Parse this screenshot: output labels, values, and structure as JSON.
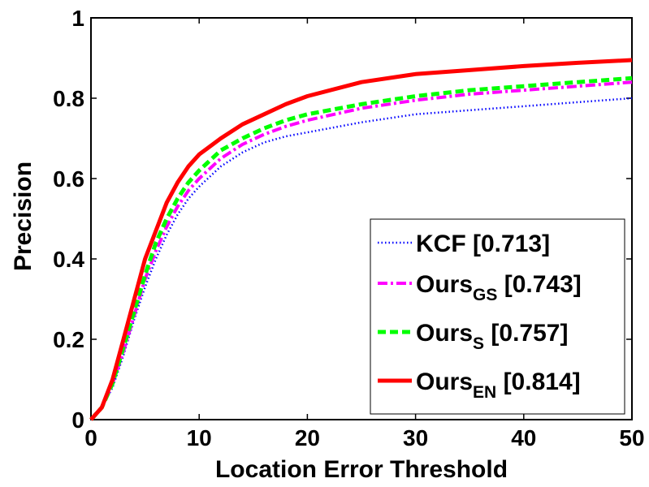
{
  "chart_data": {
    "type": "line",
    "title": "",
    "xlabel": "Location Error Threshold",
    "ylabel": "Precision",
    "xlim": [
      0,
      50
    ],
    "ylim": [
      0,
      1
    ],
    "xticks": [
      "0",
      "10",
      "20",
      "30",
      "40",
      "50"
    ],
    "yticks": [
      "0",
      "0.2",
      "0.4",
      "0.6",
      "0.8",
      "1"
    ],
    "grid": false,
    "legend_position": "bottom-right",
    "x": [
      0,
      1,
      2,
      3,
      4,
      5,
      6,
      7,
      8,
      9,
      10,
      12,
      14,
      16,
      18,
      20,
      25,
      30,
      35,
      40,
      45,
      50
    ],
    "series": [
      {
        "name": "KCF",
        "name_subscript": "",
        "score": "[0.713]",
        "color": "#0000ff",
        "dash": "dotted",
        "values": [
          0.0,
          0.03,
          0.08,
          0.16,
          0.25,
          0.33,
          0.4,
          0.46,
          0.51,
          0.55,
          0.58,
          0.63,
          0.665,
          0.69,
          0.705,
          0.715,
          0.74,
          0.76,
          0.77,
          0.78,
          0.79,
          0.8
        ]
      },
      {
        "name": "Ours",
        "name_subscript": "GS",
        "score": "[0.743]",
        "color": "#ff00ff",
        "dash": "dashdot",
        "values": [
          0.0,
          0.03,
          0.09,
          0.17,
          0.26,
          0.35,
          0.42,
          0.48,
          0.53,
          0.57,
          0.6,
          0.65,
          0.685,
          0.71,
          0.73,
          0.745,
          0.775,
          0.795,
          0.81,
          0.82,
          0.83,
          0.84
        ]
      },
      {
        "name": "Ours",
        "name_subscript": "S",
        "score": "[0.757]",
        "color": "#00ff00",
        "dash": "dashed",
        "values": [
          0.0,
          0.03,
          0.09,
          0.18,
          0.27,
          0.36,
          0.44,
          0.5,
          0.55,
          0.59,
          0.62,
          0.67,
          0.7,
          0.725,
          0.745,
          0.76,
          0.785,
          0.805,
          0.82,
          0.83,
          0.84,
          0.85
        ]
      },
      {
        "name": "Ours",
        "name_subscript": "EN",
        "score": "[0.814]",
        "color": "#ff0000",
        "dash": "solid",
        "values": [
          0.0,
          0.03,
          0.1,
          0.2,
          0.3,
          0.4,
          0.47,
          0.54,
          0.59,
          0.63,
          0.66,
          0.7,
          0.735,
          0.76,
          0.785,
          0.805,
          0.84,
          0.86,
          0.87,
          0.88,
          0.888,
          0.895
        ]
      }
    ]
  }
}
